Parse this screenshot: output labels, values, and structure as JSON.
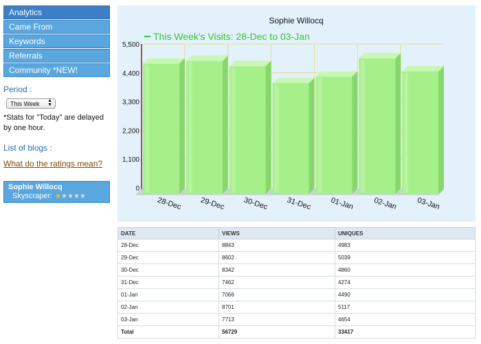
{
  "sidebar": {
    "nav": [
      {
        "label": "Analytics"
      },
      {
        "label": "Came From"
      },
      {
        "label": "Keywords"
      },
      {
        "label": "Referrals"
      },
      {
        "label": "Community *NEW!"
      }
    ],
    "period_label": "Period :",
    "period_value": "This Week",
    "stats_note": "*Stats for \"Today\" are delayed by one hour.",
    "blogs_label": "List of blogs :",
    "ratings_link": "What do the ratings mean?",
    "profile": {
      "name": "Sophie Willocq",
      "rank": "Skyscraper:",
      "stars_filled": 1,
      "stars_total": 5
    }
  },
  "chart_data": {
    "type": "bar",
    "title": "Sophie Willocq",
    "legend": "This Week's Visits: 28-Dec to 03-Jan",
    "categories": [
      "28-Dec",
      "29-Dec",
      "30-Dec",
      "31-Dec",
      "01-Jan",
      "02-Jan",
      "03-Jan"
    ],
    "values": [
      4750,
      4850,
      4650,
      4000,
      4250,
      4950,
      4450
    ],
    "y_ticks": [
      "0",
      "1,100",
      "2,200",
      "3,300",
      "4,400",
      "5,500"
    ],
    "ylim": [
      0,
      5500
    ],
    "colors": {
      "bar": "#a6f08a",
      "bar_top": "#c8f7b4",
      "bar_side": "#86d86c",
      "legend": "#37c437",
      "grid": "#e6dd8c",
      "axis": "#7a1f1f"
    }
  },
  "table": {
    "headers": [
      "DATE",
      "VIEWS",
      "UNIQUES"
    ],
    "rows": [
      [
        "28-Dec",
        "8843",
        "4983"
      ],
      [
        "29-Dec",
        "8602",
        "5039"
      ],
      [
        "30-Dec",
        "8342",
        "4860"
      ],
      [
        "31-Dec",
        "7462",
        "4274"
      ],
      [
        "01-Jan",
        "7066",
        "4490"
      ],
      [
        "02-Jan",
        "8701",
        "5117"
      ],
      [
        "03-Jan",
        "7713",
        "4654"
      ]
    ],
    "total": [
      "Total",
      "56729",
      "33417"
    ]
  }
}
